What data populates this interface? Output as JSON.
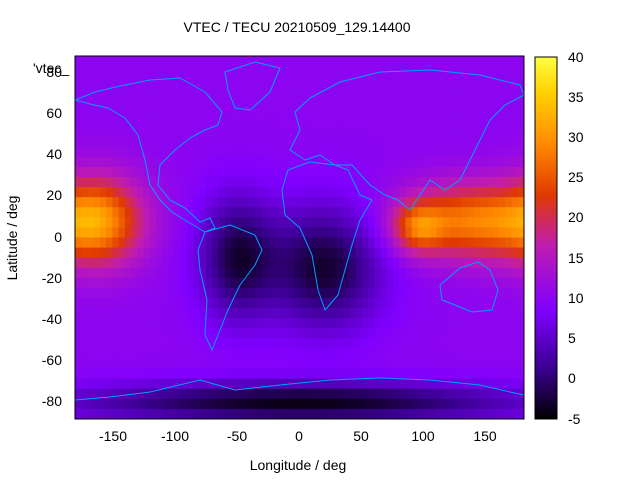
{
  "chart_data": {
    "type": "heatmap",
    "title": "VTEC / TECU 20210509_129.14400",
    "xlabel": "Longitude / deg",
    "ylabel": "Latitude / deg",
    "xlim": [
      -180,
      180
    ],
    "ylim": [
      -90,
      90
    ],
    "x_ticks": [
      "-150",
      "-100",
      "-50",
      "0",
      "50",
      "100",
      "150"
    ],
    "y_ticks": [
      "80",
      "60",
      "40",
      "20",
      "0",
      "-20",
      "-40",
      "-60",
      "-80"
    ],
    "colorbar": {
      "range": [
        -5,
        40
      ],
      "ticks": [
        "40",
        "35",
        "30",
        "25",
        "20",
        "15",
        "10",
        "5",
        "0",
        "-5"
      ],
      "colormap": [
        "#000000",
        "#3a0090",
        "#8000ff",
        "#c01cb0",
        "#e03a00",
        "#ff8a00",
        "#ffd000",
        "#ffff40"
      ]
    },
    "legend": "'vtec_",
    "coastline_color": "#00a0ff",
    "background_level": 10,
    "features": [
      {
        "kind": "peak",
        "lon": -160,
        "lat": 8,
        "value": 27,
        "lon_spread": 35,
        "lat_spread": 22
      },
      {
        "kind": "peak",
        "lon": 140,
        "lat": 8,
        "value": 28,
        "lon_spread": 55,
        "lat_spread": 18
      },
      {
        "kind": "peak",
        "lon": 95,
        "lat": 5,
        "value": 22,
        "lon_spread": 20,
        "lat_spread": 12
      },
      {
        "kind": "trough",
        "lon": 20,
        "lat": -15,
        "value": -3,
        "lon_spread": 45,
        "lat_spread": 30
      },
      {
        "kind": "trough",
        "lon": -50,
        "lat": -10,
        "value": -2,
        "lon_spread": 30,
        "lat_spread": 30
      },
      {
        "kind": "trough",
        "lon": 0,
        "lat": -82,
        "value": -4,
        "lon_spread": 180,
        "lat_spread": 10
      }
    ]
  }
}
